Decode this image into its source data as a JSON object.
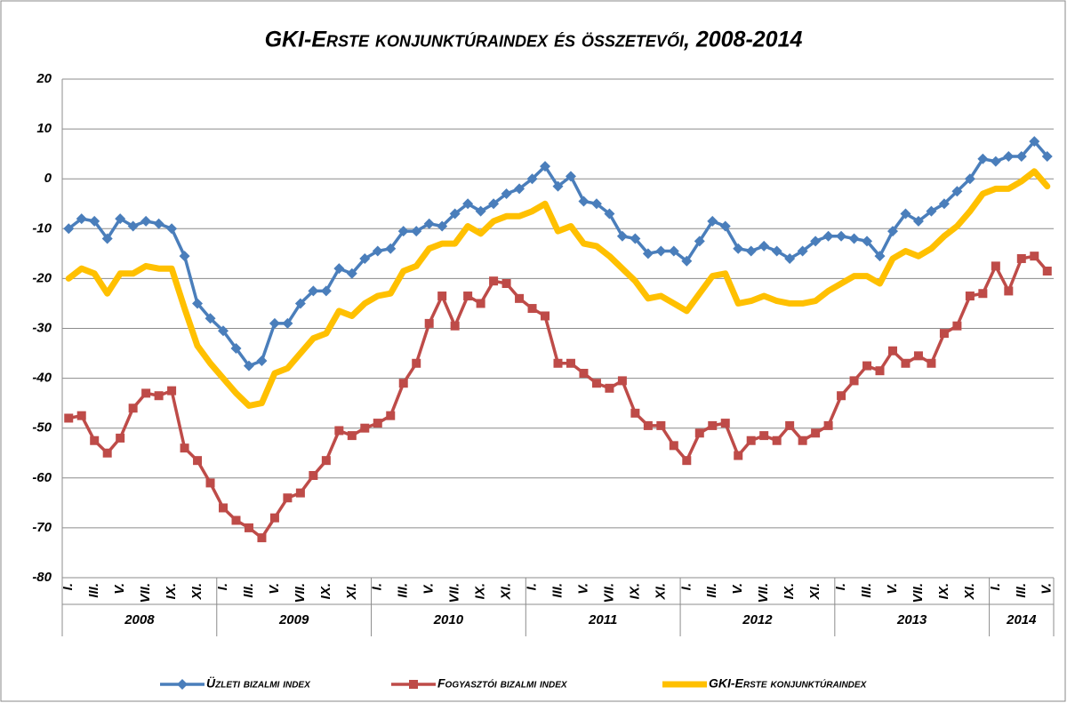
{
  "chart_data": {
    "type": "line",
    "title": "GKI-Erste konjunktúraindex és összetevői, 2008-2014",
    "categories": [
      "I.",
      null,
      "III.",
      null,
      "V.",
      null,
      "VII.",
      null,
      "IX.",
      null,
      "XI.",
      null,
      "I.",
      null,
      "III.",
      null,
      "V.",
      null,
      "VII.",
      null,
      "IX.",
      null,
      "XI.",
      null,
      "I.",
      null,
      "III.",
      null,
      "V.",
      null,
      "VII.",
      null,
      "IX.",
      null,
      "XI.",
      null,
      "I.",
      null,
      "III.",
      null,
      "V.",
      null,
      "VII.",
      null,
      "IX.",
      null,
      "XI.",
      null,
      "I.",
      null,
      "III.",
      null,
      "V.",
      null,
      "VII.",
      null,
      "IX.",
      null,
      "XI.",
      null,
      "I.",
      null,
      "III.",
      null,
      "V.",
      null,
      "VII.",
      null,
      "IX.",
      null,
      "XI.",
      null,
      "I.",
      null,
      "III.",
      null,
      "V."
    ],
    "x_groups": [
      "2008",
      "2009",
      "2010",
      "2011",
      "2012",
      "2013",
      "2014"
    ],
    "series": [
      {
        "name": "Üzleti bizalmi index",
        "color": "#4a7ebb",
        "marker": "diamond",
        "values": [
          -10,
          -8,
          -8.5,
          -12,
          -8,
          -9.5,
          -8.5,
          -9,
          -10,
          -15.5,
          -25,
          -28,
          -30.5,
          -34,
          -37.5,
          -36.5,
          -29,
          -29,
          -25,
          -22.5,
          -22.5,
          -18,
          -19,
          -16,
          -14.5,
          -14,
          -10.5,
          -10.5,
          -9,
          -9.5,
          -7,
          -5,
          -6.5,
          -5,
          -3,
          -2,
          0,
          2.5,
          -1.5,
          0.5,
          -4.5,
          -5,
          -7,
          -11.5,
          -12,
          -15,
          -14.5,
          -14.5,
          -16.5,
          -12.5,
          -8.5,
          -9.5,
          -14,
          -14.5,
          -13.5,
          -14.5,
          -16,
          -14.5,
          -12.5,
          -11.5,
          -11.5,
          -12,
          -12.5,
          -15.5,
          -10.5,
          -7,
          -8.5,
          -6.5,
          -5,
          -2.5,
          0,
          4,
          3.5,
          4.5,
          4.5,
          7.5,
          4.5
        ]
      },
      {
        "name": "Fogyasztói bizalmi index",
        "color": "#be4b48",
        "marker": "square",
        "values": [
          -48,
          -47.5,
          -52.5,
          -55,
          -52,
          -46,
          -43,
          -43.5,
          -42.5,
          -54,
          -56.5,
          -61,
          -66,
          -68.5,
          -70,
          -72,
          -68,
          -64,
          -63,
          -59.5,
          -56.5,
          -50.5,
          -51.5,
          -50,
          -49,
          -47.5,
          -41,
          -37,
          -29,
          -23.5,
          -29.5,
          -23.5,
          -25,
          -20.5,
          -21,
          -24,
          -26,
          -27.5,
          -37,
          -37,
          -39,
          -41,
          -42,
          -40.5,
          -47,
          -49.5,
          -49.5,
          -53.5,
          -56.5,
          -51,
          -49.5,
          -49,
          -55.5,
          -52.5,
          -51.5,
          -52.5,
          -49.5,
          -52.5,
          -51,
          -49.5,
          -43.5,
          -40.5,
          -37.5,
          -38.5,
          -34.5,
          -37,
          -35.5,
          -37,
          -31,
          -29.5,
          -23.5,
          -23,
          -17.5,
          -22.5,
          -16,
          -15.5,
          -18.5
        ]
      },
      {
        "name": "GKI-Erste konjunktúraindex",
        "color": "#ffc000",
        "values": [
          -20,
          -18,
          -19,
          -23,
          -19,
          -19,
          -17.5,
          -18,
          -18,
          -26,
          -33.5,
          -37,
          -40,
          -43,
          -45.5,
          -45,
          -39,
          -38,
          -35,
          -32,
          -31,
          -26.5,
          -27.5,
          -25,
          -23.5,
          -23,
          -18.5,
          -17.5,
          -14,
          -13,
          -13,
          -9.5,
          -11,
          -8.5,
          -7.5,
          -7.5,
          -6.5,
          -5,
          -10.5,
          -9.5,
          -13,
          -13.5,
          -15.5,
          -18,
          -20.5,
          -24,
          -23.5,
          -25,
          -26.5,
          -23,
          -19.5,
          -19,
          -25,
          -24.5,
          -23.5,
          -24.5,
          -25,
          -25,
          -24.5,
          -22.5,
          -21,
          -19.5,
          -19.5,
          -21,
          -16,
          -14.5,
          -15.5,
          -14,
          -11.5,
          -9.5,
          -6.5,
          -3,
          -2,
          -2,
          -0.5,
          1.5,
          -1.5
        ]
      }
    ],
    "ylim": [
      -80,
      20
    ],
    "yticks": [
      -80,
      -70,
      -60,
      -50,
      -40,
      -30,
      -20,
      -10,
      0,
      10,
      20
    ],
    "grid": true,
    "legend": "bottom"
  }
}
